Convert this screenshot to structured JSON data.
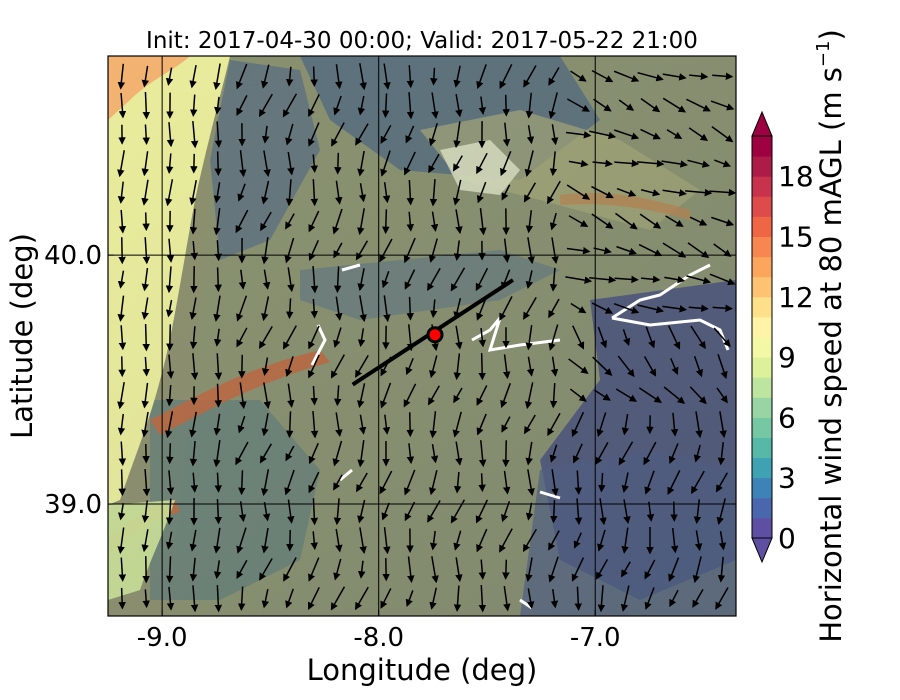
{
  "title": "Init: 2017-04-30 00:00; Valid: 2017-05-22 21:00",
  "x_axis": {
    "label": "Longitude (deg)",
    "range": [
      -9.25,
      -6.35
    ],
    "ticks": [
      {
        "value": -9.0,
        "label": "-9.0"
      },
      {
        "value": -8.0,
        "label": "-8.0"
      },
      {
        "value": -7.0,
        "label": "-7.0"
      }
    ]
  },
  "y_axis": {
    "label": "Latitude (deg)",
    "range": [
      38.55,
      40.8
    ],
    "ticks": [
      {
        "value": 39.0,
        "label": "39.0"
      },
      {
        "value": 40.0,
        "label": "40.0"
      }
    ]
  },
  "colorbar": {
    "label_main": "Horizontal wind speed at 80 mAGL (m s",
    "label_exp": "−1",
    "label_close": ")",
    "range": [
      0,
      20
    ],
    "ticks": [
      {
        "value": 0,
        "label": "0"
      },
      {
        "value": 3,
        "label": "3"
      },
      {
        "value": 6,
        "label": "6"
      },
      {
        "value": 9,
        "label": "9"
      },
      {
        "value": 12,
        "label": "12"
      },
      {
        "value": 15,
        "label": "15"
      },
      {
        "value": 18,
        "label": "18"
      }
    ],
    "colors": [
      "#5e4fa2",
      "#4a67ad",
      "#3d83b8",
      "#3ea2b3",
      "#56b9a8",
      "#76c8a5",
      "#99d5a4",
      "#bde5a0",
      "#dcf19a",
      "#f2f8a4",
      "#fff3a8",
      "#fee08b",
      "#fdc372",
      "#fca55d",
      "#f88651",
      "#ef6645",
      "#dd4b4b",
      "#c7334c",
      "#ad1b48",
      "#9e0142"
    ],
    "extend": "both"
  },
  "map": {
    "grid": true,
    "transect": {
      "start": [
        -8.12,
        39.48
      ],
      "end": [
        -7.38,
        39.9
      ]
    },
    "site_marker": {
      "lon": -7.74,
      "lat": 39.68,
      "color": "#ff0000"
    }
  }
}
